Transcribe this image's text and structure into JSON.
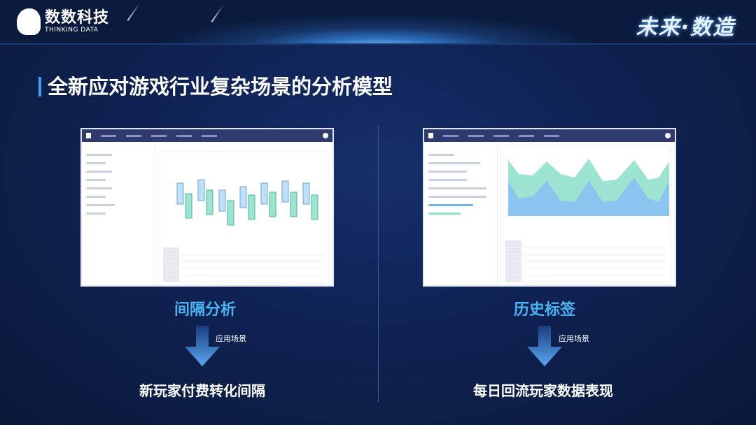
{
  "brand": {
    "name_cn": "数数科技",
    "name_en": "THINKING DATA",
    "slogan": "未来·数造"
  },
  "slide": {
    "title": "全新应对游戏行业复杂场景的分析模型"
  },
  "cards": [
    {
      "feature": "间隔分析",
      "arrow_label": "应用场景",
      "use_case": "新玩家付费转化间隔"
    },
    {
      "feature": "历史标签",
      "arrow_label": "应用场景",
      "use_case": "每日回流玩家数据表现"
    }
  ],
  "colors": {
    "accent": "#4ab4f2",
    "background": "#0f2253",
    "box_blue": "#bfe0f7",
    "box_green": "#9de3d2"
  }
}
